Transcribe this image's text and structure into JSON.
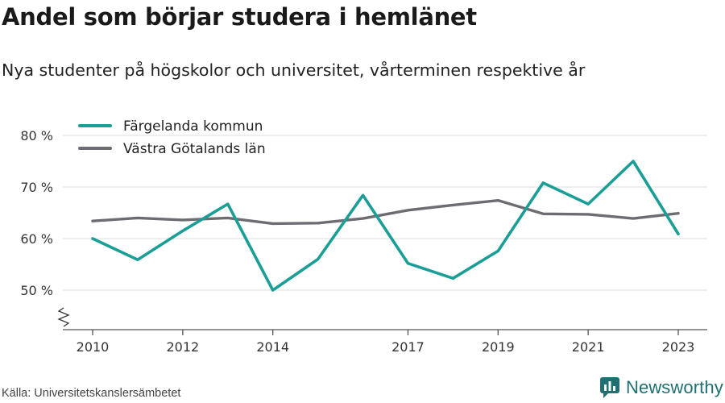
{
  "title": "Andel som börjar studera i hemlänet",
  "subtitle": "Nya studenter på högskolor och universitet, vårterminen respektive år",
  "source": "Källa: Universitetskanslersämbetet",
  "brand": "Newsworthy",
  "chart_data": {
    "type": "line",
    "x": [
      2010,
      2011,
      2012,
      2013,
      2014,
      2015,
      2016,
      2017,
      2018,
      2019,
      2020,
      2021,
      2022,
      2023
    ],
    "x_ticks": [
      2010,
      2012,
      2014,
      2017,
      2019,
      2021,
      2023
    ],
    "x_tick_labels": [
      "2010",
      "2012",
      "2014",
      "2017",
      "2019",
      "2021",
      "2023"
    ],
    "y_ticks": [
      50,
      60,
      70,
      80
    ],
    "y_tick_labels": [
      "50 %",
      "60 %",
      "70 %",
      "80 %"
    ],
    "ylim": [
      42,
      80
    ],
    "y_axis_break": true,
    "grid": "horizontal",
    "legend_position": "top-left",
    "series": [
      {
        "name": "Färgelanda kommun",
        "color": "#1a9e96",
        "values": [
          60.0,
          55.9,
          61.5,
          66.7,
          50.0,
          56.0,
          68.4,
          55.2,
          52.3,
          57.6,
          70.8,
          66.7,
          75.0,
          60.9
        ]
      },
      {
        "name": "Västra Götalands län",
        "color": "#6e6c73",
        "values": [
          63.4,
          64.0,
          63.6,
          64.0,
          62.9,
          63.0,
          63.9,
          65.5,
          66.5,
          67.4,
          64.8,
          64.7,
          63.9,
          64.9
        ]
      }
    ]
  }
}
